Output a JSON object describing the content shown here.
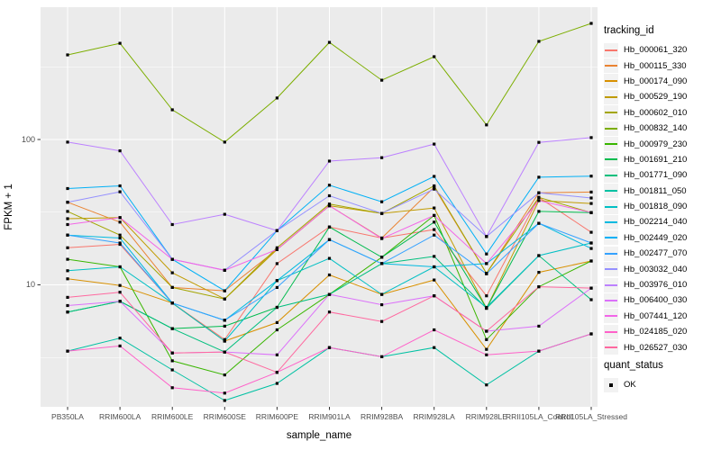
{
  "figure": {
    "background": "#FFFFFF",
    "panel_bg": "#EBEBEB",
    "grid_color": "#FFFFFF",
    "tick_color": "#333333",
    "tick_label_color": "#4D4D4D",
    "legend_key_bg": "#F2F2F2",
    "point_color": "#000000"
  },
  "chart_data": {
    "type": "line",
    "title": "",
    "xlabel": "sample_name",
    "ylabel": "FPKM + 1",
    "y_scale": "log10",
    "ylim": [
      1.45,
      813
    ],
    "y_tick_labels": [
      "100",
      "10"
    ],
    "y_tick_values": [
      100,
      10
    ],
    "y_minor_values": [
      3.162,
      31.62,
      316.2
    ],
    "grid": true,
    "marker": "black-square",
    "categories": [
      "PB350LA",
      "RRIM600LA",
      "RRIM600LE",
      "RRIM600SE",
      "RRIM600PE",
      "RRIM901LA",
      "RRIM928BA",
      "RRIM928LA",
      "RRIM928LE",
      "RRII105LA_Control",
      "RRII105LA_Stressed"
    ],
    "legend": {
      "title": "tracking_id",
      "position": "right"
    },
    "legend2": {
      "title": "quant_status",
      "items": [
        {
          "label": "OK",
          "marker": "black-square"
        }
      ]
    },
    "series": [
      {
        "name": "Hb_000061_320",
        "color": "#F8766D",
        "values": [
          18,
          19,
          7.5,
          4.2,
          14,
          25,
          21,
          24,
          8.4,
          40,
          23
        ]
      },
      {
        "name": "Hb_000115_330",
        "color": "#EA8331",
        "values": [
          37,
          27,
          9.6,
          9.1,
          17.5,
          35,
          21,
          47,
          12,
          43,
          43.5
        ]
      },
      {
        "name": "Hb_000174_090",
        "color": "#D89000",
        "values": [
          11,
          9.9,
          7.5,
          4.1,
          5.5,
          11.7,
          8.6,
          10.8,
          3.6,
          12.2,
          14.6
        ]
      },
      {
        "name": "Hb_000529_190",
        "color": "#C09B00",
        "values": [
          28.5,
          29,
          12.1,
          8.0,
          17.5,
          35,
          31,
          33.8,
          6.9,
          38,
          36.3
        ]
      },
      {
        "name": "Hb_000602_010",
        "color": "#A3A500",
        "values": [
          32,
          22,
          9.6,
          8.0,
          18,
          36,
          31,
          48,
          12,
          40,
          31.4
        ]
      },
      {
        "name": "Hb_000832_140",
        "color": "#7CAE00",
        "values": [
          382,
          459,
          160,
          96,
          193,
          466,
          256,
          371,
          126,
          473,
          629
        ]
      },
      {
        "name": "Hb_000979_230",
        "color": "#39B600",
        "values": [
          15,
          13.3,
          3.0,
          2.4,
          4.9,
          8.6,
          15.5,
          30,
          4.2,
          9.7,
          14.6
        ]
      },
      {
        "name": "Hb_001691_210",
        "color": "#00BB4E",
        "values": [
          6.5,
          7.7,
          5.0,
          5.2,
          7.0,
          25,
          15.5,
          27,
          6.9,
          32,
          31.4
        ]
      },
      {
        "name": "Hb_001771_090",
        "color": "#00BF7D",
        "values": [
          6.5,
          7.7,
          5.0,
          3.45,
          7.0,
          8.6,
          14,
          15.7,
          6.9,
          15.9,
          7.9
        ]
      },
      {
        "name": "Hb_001811_050",
        "color": "#00C1A3",
        "values": [
          3.5,
          4.3,
          2.6,
          1.6,
          2.1,
          3.7,
          3.2,
          3.7,
          2.05,
          3.5,
          4.6
        ]
      },
      {
        "name": "Hb_001818_090",
        "color": "#00BFC4",
        "values": [
          12.5,
          13.3,
          7.5,
          4.1,
          10.7,
          15.2,
          8.6,
          13.3,
          7.0,
          15.9,
          19.4
        ]
      },
      {
        "name": "Hb_002214_040",
        "color": "#00BAE0",
        "values": [
          22,
          21,
          7.5,
          5.7,
          10.7,
          20.5,
          14,
          13.3,
          14,
          26.5,
          17.8
        ]
      },
      {
        "name": "Hb_002449_020",
        "color": "#00B0F6",
        "values": [
          46,
          48,
          15,
          9.1,
          23.6,
          48.5,
          37.3,
          55.7,
          16.3,
          55,
          56
        ]
      },
      {
        "name": "Hb_002477_070",
        "color": "#35A2FF",
        "values": [
          22,
          19.4,
          7.5,
          5.7,
          9.6,
          20.5,
          14,
          22,
          11.9,
          26.5,
          19.4
        ]
      },
      {
        "name": "Hb_003032_040",
        "color": "#9590FF",
        "values": [
          37,
          43.7,
          15,
          12.6,
          23.6,
          41,
          31,
          45.6,
          21.5,
          43,
          39.6
        ]
      },
      {
        "name": "Hb_003976_010",
        "color": "#BC81FF",
        "values": [
          96,
          83.5,
          26,
          30.6,
          23.6,
          71,
          75,
          93,
          21.5,
          95.6,
          103
        ]
      },
      {
        "name": "Hb_006400_030",
        "color": "#DC71FA",
        "values": [
          7.2,
          7.7,
          3.4,
          3.45,
          3.3,
          8.6,
          7.3,
          8.4,
          4.8,
          5.2,
          9.5
        ]
      },
      {
        "name": "Hb_007441_120",
        "color": "#F265E8",
        "values": [
          26,
          29,
          15,
          12.6,
          17.5,
          35,
          20.8,
          30,
          14,
          38,
          31.4
        ]
      },
      {
        "name": "Hb_024185_020",
        "color": "#FF61C9",
        "values": [
          3.5,
          3.8,
          1.96,
          1.8,
          2.5,
          3.7,
          3.2,
          4.9,
          3.3,
          3.5,
          4.6
        ]
      },
      {
        "name": "Hb_026527_030",
        "color": "#FF689F",
        "values": [
          8.2,
          8.9,
          3.4,
          3.45,
          2.5,
          6.5,
          5.6,
          8.4,
          4.8,
          9.7,
          9.5
        ]
      }
    ]
  }
}
